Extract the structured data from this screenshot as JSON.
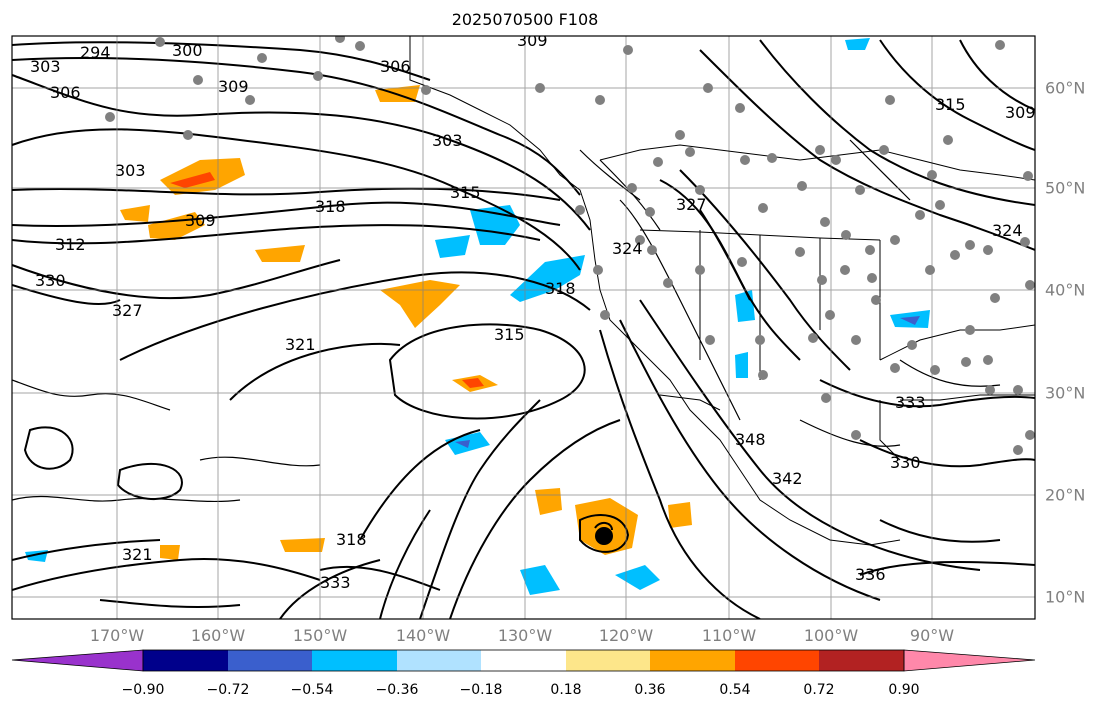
{
  "title": "2025070500 F108",
  "map": {
    "lon_labels": [
      "170°W",
      "160°W",
      "150°W",
      "140°W",
      "130°W",
      "120°W",
      "110°W",
      "100°W",
      "90°W"
    ],
    "lat_labels": [
      "60°N",
      "50°N",
      "40°N",
      "30°N",
      "20°N",
      "10°N"
    ],
    "contour_labels": [
      "294",
      "300",
      "303",
      "306",
      "309",
      "306",
      "309",
      "303",
      "303",
      "315",
      "318",
      "309",
      "312",
      "330",
      "327",
      "321",
      "315",
      "318",
      "318",
      "324",
      "327",
      "333",
      "330",
      "342",
      "336",
      "321",
      "333",
      "315",
      "309",
      "324",
      "348"
    ],
    "storm_marker": "tropical-cyclone-marker"
  },
  "colorbar": {
    "ticks": [
      "−0.90",
      "−0.72",
      "−0.54",
      "−0.36",
      "−0.18",
      "0.18",
      "0.36",
      "0.54",
      "0.72",
      "0.90"
    ],
    "colors": [
      "#9932cc",
      "#00008b",
      "#3a5fcd",
      "#00bfff",
      "#b0e2ff",
      "#ffffff",
      "#fde68a",
      "#ffa500",
      "#ff4500",
      "#b22222",
      "#ff88aa"
    ]
  }
}
